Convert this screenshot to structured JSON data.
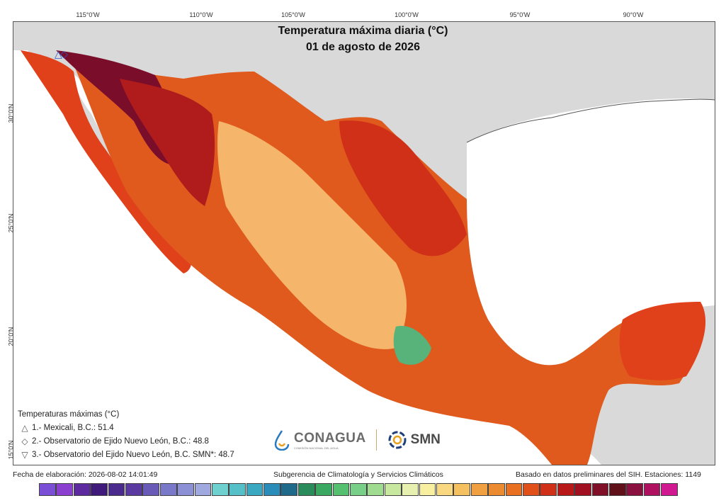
{
  "map": {
    "title_line1": "Temperatura máxima diaria (°C)",
    "title_line2": "01 de agosto de 2026",
    "lon_ticks": [
      "115°0'W",
      "110°0'W",
      "105°0'W",
      "100°0'W",
      "95°0'W",
      "90°0'W"
    ],
    "lat_ticks": [
      "30°0'N",
      "25°0'N",
      "20°0'N",
      "15°0'N"
    ]
  },
  "legend": {
    "heading": "Temperaturas máximas (°C)",
    "items": [
      {
        "symbol": "△",
        "text": "1.- Mexicali, B.C.: 51.4"
      },
      {
        "symbol": "◇",
        "text": "2.- Observatorio de Ejido Nuevo León, B.C.: 48.8"
      },
      {
        "symbol": "▽",
        "text": "3.- Observatorio del Ejido Nuevo León, B.C. SMN*: 48.7"
      }
    ]
  },
  "logos": {
    "conagua_name": "CONAGUA",
    "conagua_sub": "COMISIÓN NACIONAL DEL AGUA",
    "smn_name": "SMN"
  },
  "footer": {
    "left": "Fecha de elaboración: 2026-08-02 14:01:49",
    "center": "Subgerencia de Climatología y Servicios Climáticos",
    "right": "Basado en datos preliminares del SIH. Estaciones: 1149"
  },
  "colors": {
    "land_bg": "#d9d9d9",
    "water": "#ffffff",
    "hot": "#e0401a",
    "very_hot": "#b01c1c",
    "extreme": "#7a0d2a",
    "warm": "#f07a2a",
    "mild": "#f5b56a",
    "cool": "#57b37a"
  },
  "colorbar": [
    "#7a4fd6",
    "#8a3fd0",
    "#5c2a9e",
    "#3f1a7a",
    "#4a2a8c",
    "#5a3aa0",
    "#6a5ab8",
    "#7a78c8",
    "#8c90d4",
    "#a0a8e0",
    "#6fd0d0",
    "#55c0c8",
    "#3aa8c0",
    "#2a8cb8",
    "#1f6a8a",
    "#2a8c5a",
    "#3aa860",
    "#55c070",
    "#78d088",
    "#a0dc90",
    "#c8e8a0",
    "#e8f0b0",
    "#f8f0a0",
    "#f8d880",
    "#f5c060",
    "#f0a040",
    "#ec8a30",
    "#e87020",
    "#e05018",
    "#d03018",
    "#b81818",
    "#a01020",
    "#801028",
    "#601018",
    "#8a1040",
    "#b01060",
    "#d01890"
  ]
}
